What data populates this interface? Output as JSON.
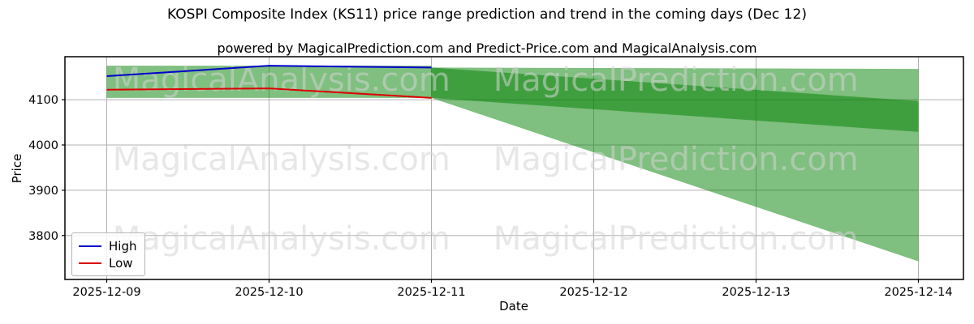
{
  "chart_data": {
    "type": "line",
    "title": "KOSPI Composite Index (KS11) price range prediction and trend in the coming days (Dec 12)",
    "subtitle": "powered by MagicalPrediction.com and Predict-Price.com and MagicalAnalysis.com",
    "xlabel": "Date",
    "ylabel": "Price",
    "x_categories": [
      "2025-12-09",
      "2025-12-10",
      "2025-12-11",
      "2025-12-12",
      "2025-12-13",
      "2025-12-14"
    ],
    "yticks": [
      3800,
      3900,
      4000,
      4100
    ],
    "ylim": [
      3703,
      4195
    ],
    "x_index_range": [
      -0.2575,
      5.2775
    ],
    "grid": true,
    "grid_color": "#b0b0b0",
    "axis_color": "#000000",
    "legend_position": "lower left",
    "series": [
      {
        "name": "High",
        "color": "#0000cc",
        "x": [
          0,
          1,
          2
        ],
        "values": [
          4152,
          4175,
          4171
        ]
      },
      {
        "name": "Low",
        "color": "#dd0000",
        "x": [
          0,
          1,
          2
        ],
        "values": [
          4122,
          4125,
          4104
        ]
      }
    ],
    "bands": [
      {
        "name": "history-range",
        "color": "#008000",
        "opacity": 0.5,
        "x": [
          0,
          2
        ],
        "top": [
          4175,
          4175
        ],
        "bottom": [
          4104,
          4104
        ]
      },
      {
        "name": "forecast-wide",
        "color": "#008000",
        "opacity": 0.5,
        "x": [
          2,
          5
        ],
        "top": [
          4171,
          4168
        ],
        "bottom": [
          4104,
          3743
        ]
      },
      {
        "name": "forecast-narrow",
        "color": "#008000",
        "opacity": 0.5,
        "x": [
          2,
          5
        ],
        "top": [
          4171,
          4097
        ],
        "bottom": [
          4104,
          4029
        ]
      }
    ],
    "watermark": {
      "left_text": "MagicalAnalysis.com",
      "right_text": "MagicalPrediction.com",
      "color": "#d3d3d3",
      "opacity": 0.55
    }
  }
}
